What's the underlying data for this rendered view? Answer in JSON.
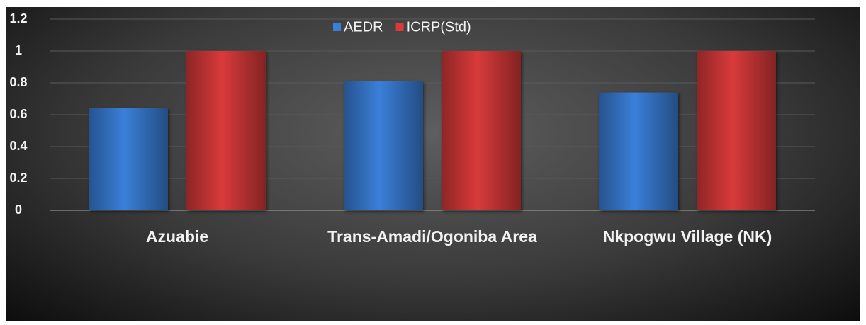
{
  "chart_data": {
    "type": "bar",
    "categories": [
      "Azuabie",
      "Trans-Amadi/Ogoniba Area",
      "Nkpogwu Village (NK)"
    ],
    "series": [
      {
        "name": "AEDR",
        "color": "#3a7fd9",
        "values": [
          0.64,
          0.81,
          0.74
        ]
      },
      {
        "name": "ICRP(Std)",
        "color": "#d93a3a",
        "values": [
          1,
          1,
          1
        ]
      }
    ],
    "ylim": [
      0,
      1.2
    ],
    "yticks": [
      0,
      0.2,
      0.4,
      0.6,
      0.8,
      1,
      1.2
    ],
    "grid": true,
    "legend": "top"
  }
}
